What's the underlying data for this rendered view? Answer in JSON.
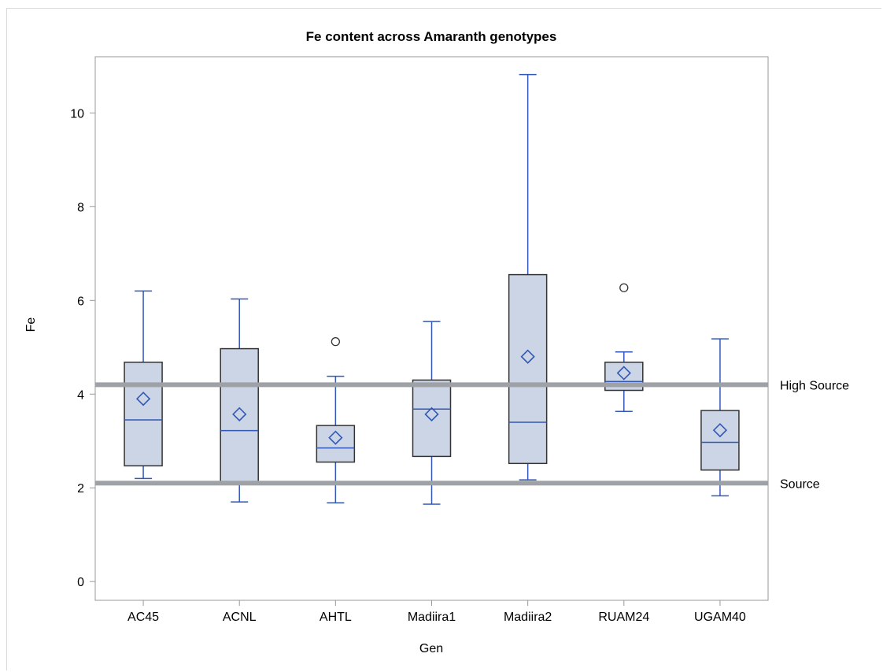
{
  "chart_data": {
    "type": "box",
    "title": "Fe content across Amaranth genotypes",
    "xlabel": "Gen",
    "ylabel": "Fe",
    "ylim": [
      -0.4,
      11.2
    ],
    "yticks": [
      0,
      2,
      4,
      6,
      8,
      10
    ],
    "grid": false,
    "categories": [
      "AC45",
      "ACNL",
      "AHTL",
      "Madiira1",
      "Madiira2",
      "RUAM24",
      "UGAM40"
    ],
    "boxes": [
      {
        "category": "AC45",
        "whisker_low": 2.2,
        "q1": 2.47,
        "median": 3.45,
        "q3": 4.68,
        "whisker_high": 6.2,
        "mean": 3.9,
        "outliers": []
      },
      {
        "category": "ACNL",
        "whisker_low": 1.7,
        "q1": 2.1,
        "median": 3.22,
        "q3": 4.97,
        "whisker_high": 6.03,
        "mean": 3.57,
        "outliers": []
      },
      {
        "category": "AHTL",
        "whisker_low": 1.68,
        "q1": 2.55,
        "median": 2.85,
        "q3": 3.33,
        "whisker_high": 4.38,
        "mean": 3.07,
        "outliers": [
          5.12
        ]
      },
      {
        "category": "Madiira1",
        "whisker_low": 1.65,
        "q1": 2.67,
        "median": 3.68,
        "q3": 4.3,
        "whisker_high": 5.55,
        "mean": 3.57,
        "outliers": []
      },
      {
        "category": "Madiira2",
        "whisker_low": 2.17,
        "q1": 2.52,
        "median": 3.4,
        "q3": 6.55,
        "whisker_high": 10.82,
        "mean": 4.8,
        "outliers": []
      },
      {
        "category": "RUAM24",
        "whisker_low": 3.63,
        "q1": 4.08,
        "median": 4.27,
        "q3": 4.68,
        "whisker_high": 4.9,
        "mean": 4.45,
        "outliers": [
          6.27
        ]
      },
      {
        "category": "UGAM40",
        "whisker_low": 1.83,
        "q1": 2.38,
        "median": 2.97,
        "q3": 3.65,
        "whisker_high": 5.18,
        "mean": 3.23,
        "outliers": []
      }
    ],
    "reference_lines": [
      {
        "label": "High Source",
        "value": 4.2
      },
      {
        "label": "Source",
        "value": 2.1
      }
    ],
    "colors": {
      "box_fill": "#cbd5e6",
      "box_edge": "#333333",
      "whisker": "#3257b6",
      "median": "#3257b6",
      "mean_marker": "#3257b6",
      "outlier": "#333333",
      "reference_line": "#9ea2a6",
      "axis": "#9a9a9a"
    },
    "markers": {
      "mean": "diamond",
      "outlier": "circle"
    }
  }
}
